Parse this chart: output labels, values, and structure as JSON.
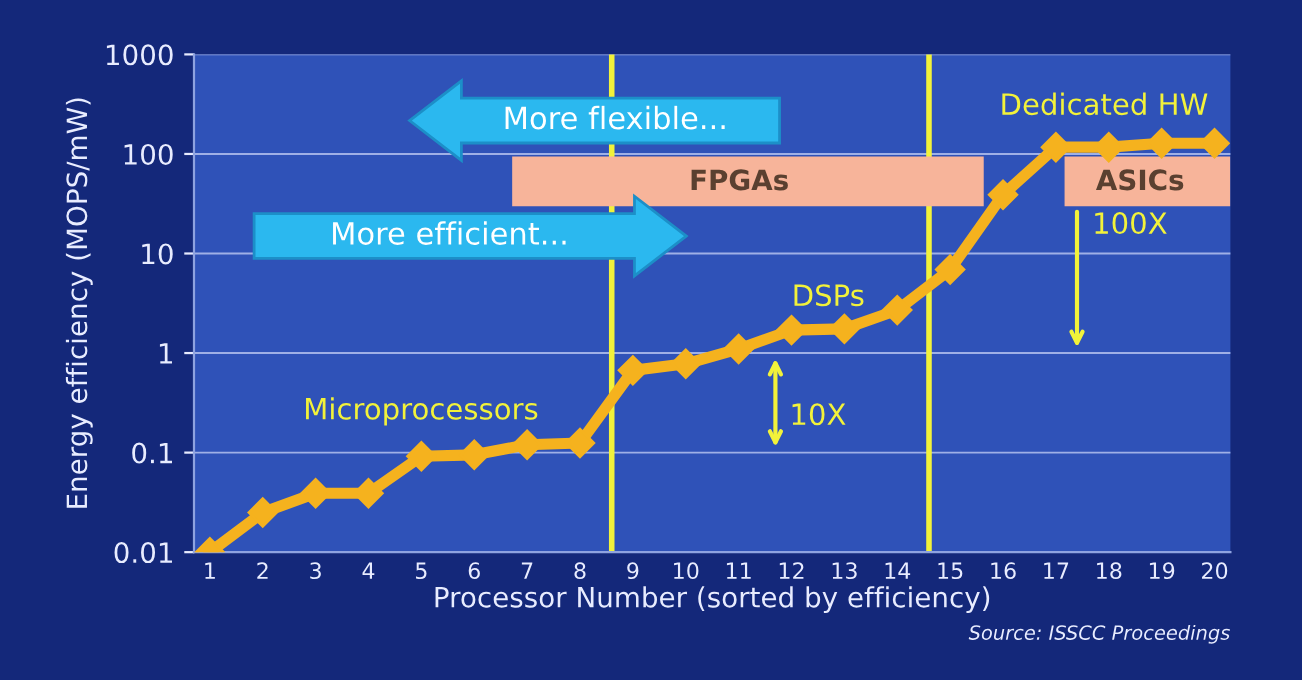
{
  "chart_data": {
    "type": "line",
    "xlabel": "Processor Number (sorted by efficiency)",
    "ylabel": "Energy efficiency (MOPS/mW)",
    "x": [
      1,
      2,
      3,
      4,
      5,
      6,
      7,
      8,
      9,
      10,
      11,
      12,
      13,
      14,
      15,
      16,
      17,
      18,
      19,
      20
    ],
    "series": [
      {
        "color": "#f5b21e",
        "values": [
          0.01,
          0.025,
          0.039,
          0.039,
          0.092,
          0.095,
          0.12,
          0.125,
          0.67,
          0.78,
          1.1,
          1.7,
          1.75,
          2.7,
          6.9,
          39,
          117,
          117,
          128,
          128
        ]
      }
    ],
    "log": true,
    "xlim": [
      0.7,
      20.3
    ],
    "xticks": [
      1,
      2,
      3,
      4,
      5,
      6,
      7,
      8,
      9,
      10,
      11,
      12,
      13,
      14,
      15,
      16,
      17,
      18,
      19,
      20
    ],
    "ylim": [
      0.01,
      1000
    ],
    "yticks": [
      0.01,
      0.1,
      1,
      10,
      100,
      1000
    ],
    "grid": "y",
    "marker": "diamond",
    "line_style": "solid",
    "ref_lines": [
      {
        "axis": "x",
        "value": 8.6,
        "color": "#f2f23a"
      },
      {
        "axis": "x",
        "value": 14.6,
        "color": "#f2f23a"
      }
    ],
    "annotations": [
      "Microprocessors",
      "DSPs",
      "Dedicated HW",
      "10X",
      "100X",
      "FPGAs",
      "ASICs",
      "More flexible...",
      "More efficient...",
      "Source: ISSCC Proceedings"
    ]
  }
}
